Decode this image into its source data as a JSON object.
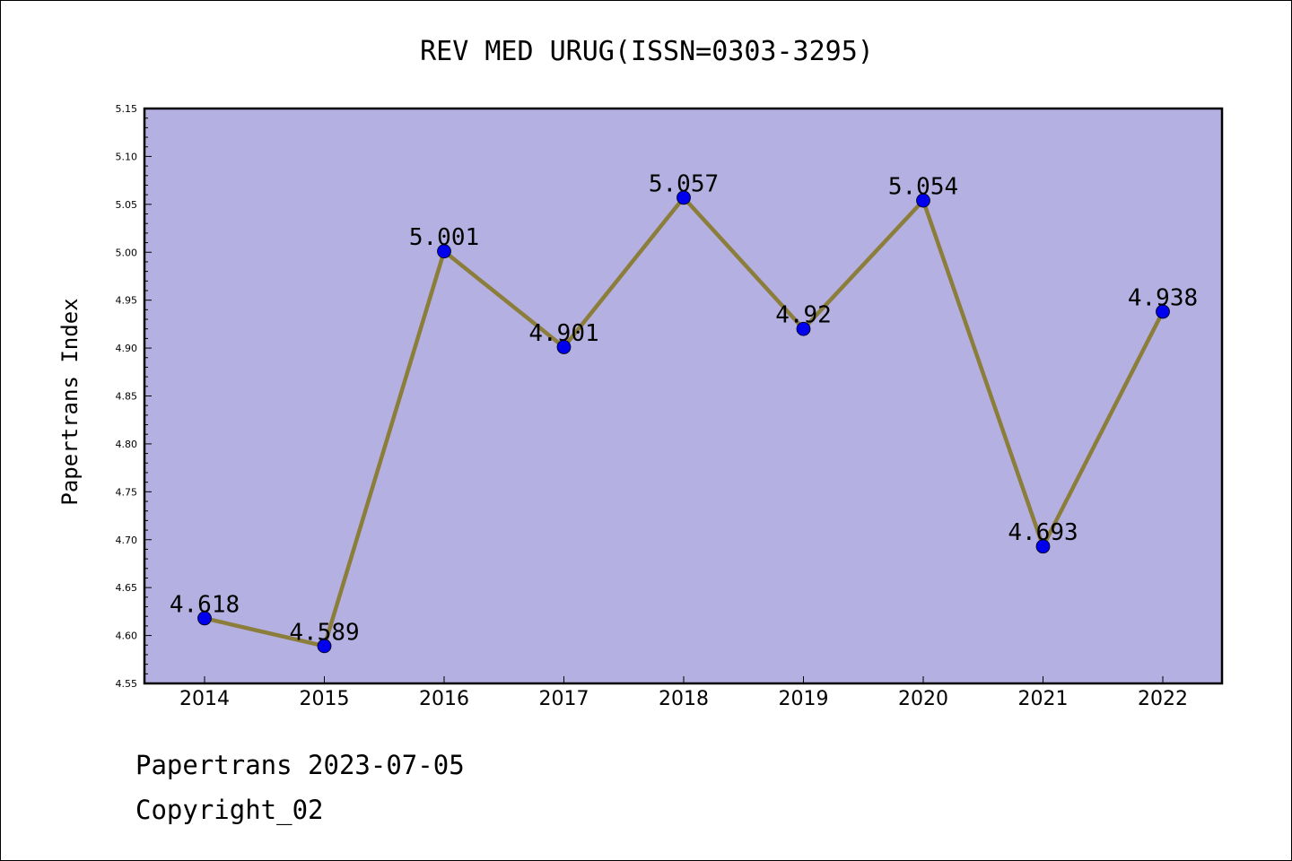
{
  "chart_data": {
    "type": "line",
    "title": "REV MED URUG(ISSN=0303-3295)",
    "xlabel": "",
    "ylabel": "Papertrans Index",
    "categories": [
      "2014",
      "2015",
      "2016",
      "2017",
      "2018",
      "2019",
      "2020",
      "2021",
      "2022"
    ],
    "values": [
      4.618,
      4.589,
      5.001,
      4.901,
      5.057,
      4.92,
      5.054,
      4.693,
      4.938
    ],
    "data_labels": [
      "4.618",
      "4.589",
      "5.001",
      "4.901",
      "5.057",
      "4.92",
      "5.054",
      "4.693",
      "4.938"
    ],
    "ylim": [
      4.55,
      5.15
    ],
    "yticks": [
      "4.55",
      "4.60",
      "4.65",
      "4.70",
      "4.75",
      "4.80",
      "4.85",
      "4.90",
      "4.95",
      "5.00",
      "5.05",
      "5.10",
      "5.15"
    ],
    "grid": false,
    "legend": "none",
    "colors": {
      "plot_background": "#b5b0e2",
      "line": "#8b7d3a",
      "marker": "#0000ee",
      "axes": "#000000"
    }
  },
  "footer": {
    "line1": "Papertrans 2023-07-05",
    "line2": "Copyright_02"
  }
}
